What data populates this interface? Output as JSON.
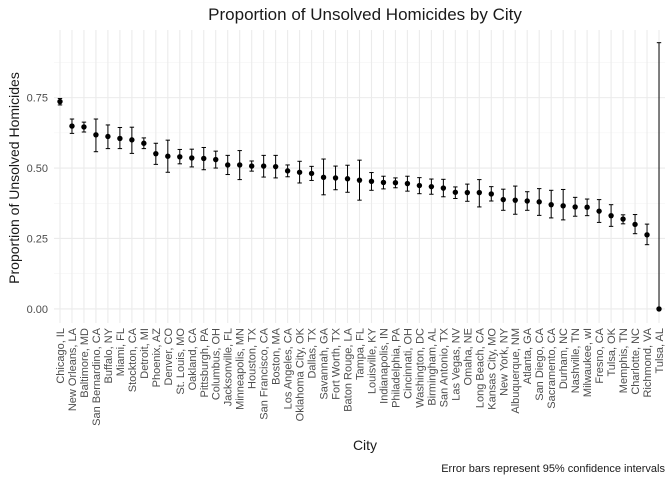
{
  "chart_data": {
    "type": "scatter",
    "title": "Proportion of Unsolved Homicides by City",
    "xlabel": "City",
    "ylabel": "Proportion of Unsolved Homicides",
    "caption": "Error bars represent 95% confidence intervals",
    "ylim": [
      -0.05,
      0.99
    ],
    "yticks": [
      0.0,
      0.25,
      0.5,
      0.75
    ],
    "ytick_labels": [
      "0.00",
      "0.25",
      "0.50",
      "0.75"
    ],
    "grid": true,
    "legend": "none",
    "categories": [
      "Chicago, IL",
      "New Orleans, LA",
      "Baltimore, MD",
      "San Bernardino, CA",
      "Buffalo, NY",
      "Miami, FL",
      "Stockton, CA",
      "Detroit, MI",
      "Phoenix, AZ",
      "Denver, CO",
      "St. Louis, MO",
      "Oakland, CA",
      "Pittsburgh, PA",
      "Columbus, OH",
      "Jacksonville, FL",
      "Minneapolis, MN",
      "Houston, TX",
      "San Francisco, CA",
      "Boston, MA",
      "Los Angeles, CA",
      "Oklahoma City, OK",
      "Dallas, TX",
      "Savannah, GA",
      "Fort Worth, TX",
      "Baton Rouge, LA",
      "Tampa, FL",
      "Louisville, KY",
      "Indianapolis, IN",
      "Philadelphia, PA",
      "Cincinnati, OH",
      "Washington, DC",
      "Birmingham, AL",
      "San Antonio, TX",
      "Las Vegas, NV",
      "Omaha, NE",
      "Long Beach, CA",
      "Kansas City, MO",
      "New York, NY",
      "Albuquerque, NM",
      "Atlanta, GA",
      "San Diego, CA",
      "Sacramento, CA",
      "Durham, NC",
      "Nashville, TN",
      "Milwaukee, wI",
      "Fresno, CA",
      "Tulsa, OK",
      "Memphis, TN",
      "Charlotte, NC",
      "Richmond, VA",
      "Tulsa, AL"
    ],
    "values": [
      0.736,
      0.649,
      0.646,
      0.618,
      0.612,
      0.605,
      0.6,
      0.588,
      0.551,
      0.542,
      0.54,
      0.536,
      0.534,
      0.53,
      0.511,
      0.511,
      0.507,
      0.507,
      0.505,
      0.49,
      0.485,
      0.481,
      0.467,
      0.465,
      0.462,
      0.457,
      0.453,
      0.449,
      0.448,
      0.445,
      0.438,
      0.434,
      0.429,
      0.414,
      0.413,
      0.413,
      0.408,
      0.388,
      0.386,
      0.383,
      0.38,
      0.37,
      0.366,
      0.362,
      0.361,
      0.347,
      0.331,
      0.319,
      0.3,
      0.263,
      0.0
    ],
    "ci_low": [
      0.724,
      0.623,
      0.628,
      0.558,
      0.569,
      0.569,
      0.552,
      0.569,
      0.513,
      0.485,
      0.515,
      0.504,
      0.494,
      0.5,
      0.477,
      0.459,
      0.489,
      0.468,
      0.465,
      0.469,
      0.447,
      0.456,
      0.405,
      0.423,
      0.414,
      0.386,
      0.421,
      0.426,
      0.43,
      0.418,
      0.409,
      0.407,
      0.398,
      0.392,
      0.382,
      0.362,
      0.383,
      0.35,
      0.336,
      0.35,
      0.332,
      0.323,
      0.316,
      0.329,
      0.331,
      0.307,
      0.293,
      0.302,
      0.267,
      0.228,
      0.0
    ],
    "ci_high": [
      0.747,
      0.674,
      0.663,
      0.674,
      0.653,
      0.644,
      0.645,
      0.607,
      0.588,
      0.599,
      0.566,
      0.567,
      0.573,
      0.56,
      0.545,
      0.562,
      0.525,
      0.545,
      0.545,
      0.511,
      0.524,
      0.506,
      0.532,
      0.507,
      0.51,
      0.528,
      0.484,
      0.471,
      0.465,
      0.471,
      0.466,
      0.461,
      0.46,
      0.433,
      0.443,
      0.459,
      0.434,
      0.425,
      0.436,
      0.416,
      0.427,
      0.421,
      0.424,
      0.396,
      0.39,
      0.388,
      0.37,
      0.334,
      0.335,
      0.301,
      0.945
    ]
  }
}
